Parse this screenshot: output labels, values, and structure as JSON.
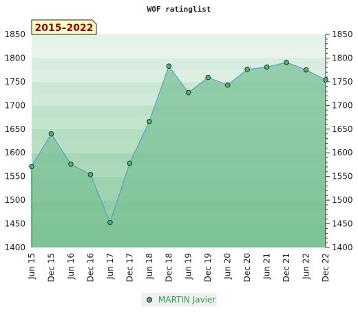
{
  "colors": {
    "accent": "#2e9b4f",
    "line": "#5aa0cc",
    "area": "#7cc297",
    "marker": "#55b06f",
    "badge_bg": "#ffffc8",
    "badge_text": "#8b0000",
    "band_light": "#eef7f0",
    "band_dark": "#76c08f"
  },
  "chart_data": {
    "type": "area",
    "title": "WOF ratinglist",
    "period_label": "2015–2022",
    "x": [
      "Jun 15",
      "Dec 15",
      "Jun 16",
      "Dec 16",
      "Jun 17",
      "Dec 17",
      "Jun 18",
      "Dec 18",
      "Jun 19",
      "Dec 19",
      "Jun 20",
      "Dec 20",
      "Jun 21",
      "Dec 21",
      "Jun 22",
      "Dec 22"
    ],
    "series": [
      {
        "name": "MARTIN Javier",
        "values": [
          1571,
          1640,
          1576,
          1554,
          1453,
          1578,
          1666,
          1783,
          1727,
          1759,
          1743,
          1776,
          1781,
          1791,
          1775,
          1754
        ]
      }
    ],
    "ylim": [
      1400,
      1850
    ],
    "yticks": [
      1400,
      1450,
      1500,
      1550,
      1600,
      1650,
      1700,
      1750,
      1800,
      1850
    ],
    "grid": "horizontal bands",
    "legend_position": "bottom-center"
  }
}
